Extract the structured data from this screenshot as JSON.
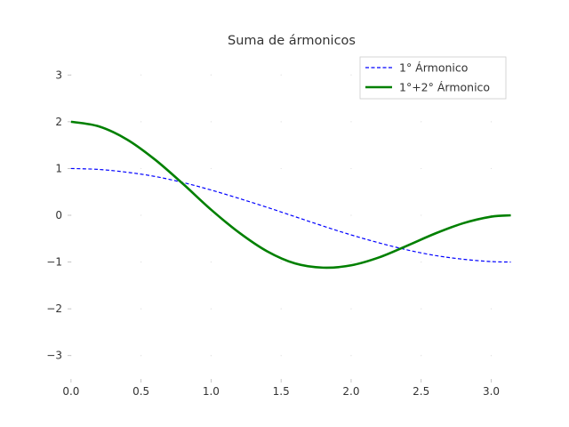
{
  "chart_data": {
    "type": "line",
    "title": "Suma de ármonicos",
    "xlabel": "",
    "ylabel": "",
    "xlim": [
      -0.05,
      3.2
    ],
    "ylim": [
      -3.5,
      3.5
    ],
    "xticks": [
      0.0,
      0.5,
      1.0,
      1.5,
      2.0,
      2.5,
      3.0
    ],
    "xtick_labels": [
      "0.0",
      "0.5",
      "1.0",
      "1.5",
      "2.0",
      "2.5",
      "3.0"
    ],
    "yticks": [
      3,
      2,
      1,
      0,
      -1,
      -2,
      -3
    ],
    "ytick_labels": [
      "3",
      "2",
      "1",
      "0",
      "−1",
      "−2",
      "−3"
    ],
    "grid": true,
    "legend_position": "top-right",
    "series": [
      {
        "name": "1° Ármonico",
        "color": "#0000ff",
        "style": "dashed",
        "x": [
          0.0,
          0.2,
          0.4,
          0.6,
          0.8,
          1.0,
          1.2,
          1.4,
          1.6,
          1.8,
          2.0,
          2.2,
          2.4,
          2.6,
          2.8,
          3.0,
          3.14
        ],
        "y": [
          1.0,
          0.98,
          0.92,
          0.83,
          0.7,
          0.54,
          0.36,
          0.17,
          -0.03,
          -0.23,
          -0.42,
          -0.59,
          -0.74,
          -0.86,
          -0.94,
          -0.99,
          -1.0
        ]
      },
      {
        "name": "1°+2° Ármonico",
        "color": "#008000",
        "style": "solid",
        "x": [
          0.0,
          0.2,
          0.4,
          0.6,
          0.8,
          1.0,
          1.2,
          1.4,
          1.6,
          1.8,
          2.0,
          2.2,
          2.4,
          2.6,
          2.8,
          3.0,
          3.14
        ],
        "y": [
          2.0,
          1.9,
          1.62,
          1.19,
          0.67,
          0.12,
          -0.37,
          -0.77,
          -1.03,
          -1.12,
          -1.07,
          -0.9,
          -0.65,
          -0.39,
          -0.17,
          -0.03,
          0.0
        ]
      }
    ]
  }
}
